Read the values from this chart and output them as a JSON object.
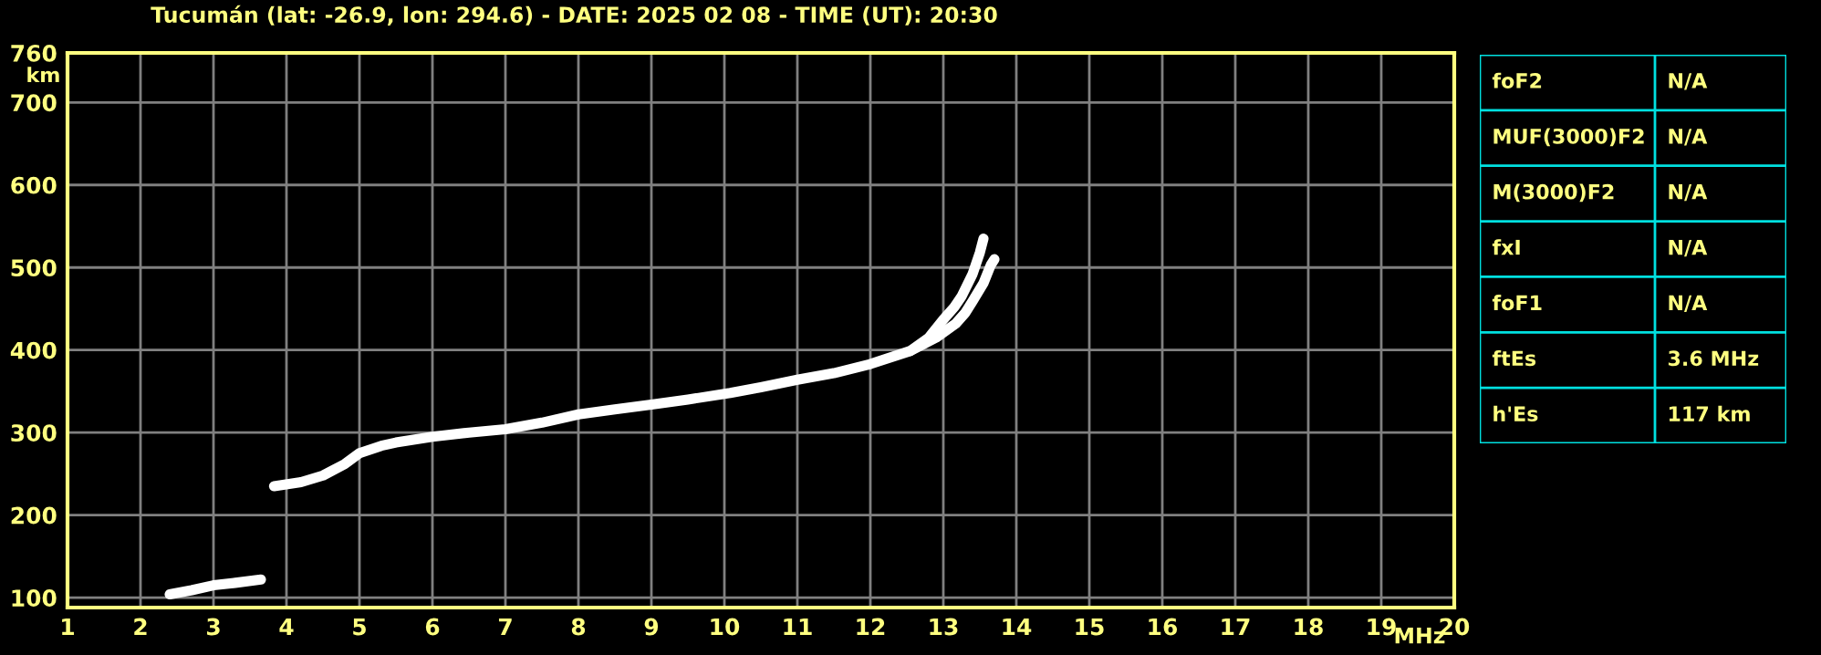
{
  "chart_data": [
    {
      "type": "line",
      "title": "Tucumán (lat: -26.9, lon: 294.6) - DATE: 2025 02 08 - TIME (UT): 20:30",
      "xlabel": "MHz",
      "ylabel": "km",
      "xlim": [
        1,
        20
      ],
      "xticks": [
        1,
        2,
        3,
        4,
        5,
        6,
        7,
        8,
        9,
        10,
        11,
        12,
        13,
        14,
        15,
        16,
        17,
        18,
        19,
        20
      ],
      "ylim": [
        88,
        760
      ],
      "yticks": [
        100,
        200,
        300,
        400,
        500,
        600,
        700,
        760
      ],
      "grid": true,
      "marker": "none",
      "line_style": "solid",
      "series": [
        {
          "color": "#ffffff",
          "x": [
            2.4,
            2.7,
            3.0,
            3.3,
            3.65
          ],
          "values": [
            104,
            109,
            115,
            118,
            122
          ]
        },
        {
          "color": "#ffffff",
          "x": [
            3.83,
            4.2,
            4.5,
            4.8,
            5.0,
            5.3,
            5.5,
            6.0,
            6.5,
            7.0,
            7.5,
            8.0,
            8.5,
            9.0,
            9.5,
            10.08,
            10.5,
            11.0,
            11.5,
            12.0,
            12.55,
            12.8,
            13.0,
            13.15,
            13.25,
            13.4,
            13.5,
            13.55
          ],
          "values": [
            235,
            240,
            248,
            262,
            275,
            284,
            288,
            295,
            300,
            304,
            312,
            322,
            328,
            334,
            340,
            348,
            355,
            364,
            372,
            383,
            399,
            415,
            437,
            452,
            465,
            492,
            518,
            535
          ]
        },
        {
          "color": "#ffffff",
          "x": [
            12.55,
            12.9,
            13.17,
            13.3,
            13.4,
            13.55,
            13.65,
            13.7
          ],
          "values": [
            399,
            415,
            432,
            445,
            459,
            481,
            503,
            510
          ]
        }
      ]
    },
    {
      "type": "other",
      "annotations": [
        "foF2",
        "N/A",
        "MUF(3000)F2",
        "N/A",
        "M(3000)F2",
        "N/A",
        "fxI",
        "N/A",
        "foF1",
        "N/A",
        "ftEs",
        "3.6 MHz",
        "h'Es",
        "117 km"
      ]
    }
  ]
}
